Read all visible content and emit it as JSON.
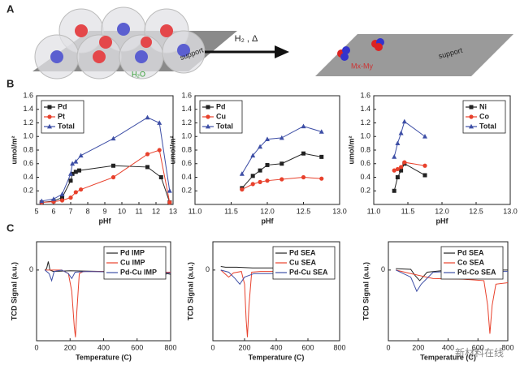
{
  "panel_labels": [
    "A",
    "B",
    "C"
  ],
  "panel_a": {
    "left_support": "support",
    "water": "H₂O",
    "arrow_label": "H₂ , Δ",
    "alloy": "Mx-My",
    "right_support": "support"
  },
  "watermark": "新材料在线",
  "chart_data": [
    {
      "type": "line",
      "xlabel": "pHf",
      "ylabel": "umol/m²",
      "xlim": [
        5,
        13
      ],
      "ylim": [
        0,
        1.6
      ],
      "xticks": [
        5,
        6,
        7,
        8,
        9,
        10,
        11,
        12,
        13
      ],
      "yticks": [
        0.2,
        0.4,
        0.6,
        0.8,
        {
          "value": 1.0,
          "label": "1.0"
        },
        1.2,
        1.4,
        1.6
      ],
      "legend": "upper left",
      "series": [
        {
          "name": "Pd",
          "color": "#222222",
          "marker": "square",
          "x": [
            5.3,
            6,
            6.5,
            7,
            7.1,
            7.3,
            7.5,
            9.5,
            11.5,
            12.3,
            12.8
          ],
          "values": [
            0.03,
            0.05,
            0.1,
            0.35,
            0.45,
            0.48,
            0.5,
            0.57,
            0.55,
            0.4,
            0.03
          ]
        },
        {
          "name": "Pt",
          "color": "#e8412c",
          "marker": "circle",
          "x": [
            5.3,
            6,
            6.5,
            7,
            7.3,
            7.6,
            9.5,
            11.5,
            12.2,
            12.8
          ],
          "values": [
            0.03,
            0.04,
            0.06,
            0.1,
            0.18,
            0.22,
            0.4,
            0.74,
            0.8,
            0.03
          ]
        },
        {
          "name": "Total",
          "color": "#3e4fa6",
          "marker": "triangle",
          "x": [
            5.3,
            6,
            6.5,
            7,
            7.1,
            7.3,
            7.6,
            9.5,
            11.5,
            12.2,
            12.8
          ],
          "values": [
            0.05,
            0.08,
            0.15,
            0.45,
            0.6,
            0.63,
            0.72,
            0.97,
            1.28,
            1.2,
            0.2
          ]
        }
      ]
    },
    {
      "type": "line",
      "xlabel": "pHf",
      "ylabel": "umol/m²",
      "xlim": [
        11,
        13
      ],
      "ylim": [
        0,
        1.6
      ],
      "xticks": [
        {
          "value": 11,
          "label": "11.0"
        },
        11.5,
        {
          "value": 12,
          "label": "12.0"
        },
        12.5,
        {
          "value": 13,
          "label": "13.0"
        }
      ],
      "yticks": [
        0.2,
        0.4,
        0.6,
        0.8,
        {
          "value": 1.0,
          "label": "1.0"
        },
        1.2,
        1.4,
        1.6
      ],
      "legend": "upper left",
      "series": [
        {
          "name": "Pd",
          "color": "#222222",
          "marker": "square",
          "x": [
            11.65,
            11.8,
            11.9,
            12.0,
            12.2,
            12.5,
            12.75
          ],
          "values": [
            0.24,
            0.42,
            0.5,
            0.58,
            0.6,
            0.75,
            0.7
          ]
        },
        {
          "name": "Cu",
          "color": "#e8412c",
          "marker": "circle",
          "x": [
            11.65,
            11.8,
            11.9,
            12.0,
            12.2,
            12.5,
            12.75
          ],
          "values": [
            0.22,
            0.3,
            0.33,
            0.35,
            0.37,
            0.4,
            0.38
          ]
        },
        {
          "name": "Total",
          "color": "#3e4fa6",
          "marker": "triangle",
          "x": [
            11.65,
            11.8,
            11.9,
            12.0,
            12.2,
            12.5,
            12.75
          ],
          "values": [
            0.45,
            0.72,
            0.85,
            0.96,
            0.98,
            1.15,
            1.07
          ]
        }
      ]
    },
    {
      "type": "line",
      "xlabel": "pHf",
      "ylabel": "umol/m²",
      "xlim": [
        11,
        13
      ],
      "ylim": [
        0,
        1.6
      ],
      "xticks": [
        {
          "value": 11,
          "label": "11.0"
        },
        11.5,
        {
          "value": 12,
          "label": "12.0"
        },
        12.5,
        {
          "value": 13,
          "label": "13.0"
        }
      ],
      "yticks": [
        0.2,
        0.4,
        0.6,
        0.8,
        {
          "value": 1.0,
          "label": "1.0"
        },
        1.2,
        1.4,
        1.6
      ],
      "legend": "upper right",
      "series": [
        {
          "name": "Ni",
          "color": "#222222",
          "marker": "square",
          "x": [
            11.3,
            11.35,
            11.4,
            11.45,
            11.75
          ],
          "values": [
            0.2,
            0.4,
            0.5,
            0.6,
            0.43
          ]
        },
        {
          "name": "Co",
          "color": "#e8412c",
          "marker": "circle",
          "x": [
            11.3,
            11.35,
            11.4,
            11.45,
            11.75
          ],
          "values": [
            0.5,
            0.52,
            0.55,
            0.62,
            0.57
          ]
        },
        {
          "name": "Total",
          "color": "#3e4fa6",
          "marker": "triangle",
          "x": [
            11.3,
            11.35,
            11.4,
            11.45,
            11.75
          ],
          "values": [
            0.7,
            0.9,
            1.05,
            1.22,
            1.0
          ]
        }
      ]
    },
    {
      "type": "line",
      "xlabel": "Temperature (C)",
      "ylabel": "TCD Signal (a.u.)",
      "xlim": [
        0,
        800
      ],
      "ylim": [
        -1,
        0.4
      ],
      "xticks": [
        0,
        200,
        400,
        600,
        800
      ],
      "yticks": [
        0
      ],
      "legend": "upper right",
      "series": [
        {
          "name": "Pd IMP",
          "color": "#222222",
          "x": [
            50,
            60,
            70,
            80,
            100,
            200,
            400,
            600,
            700,
            750,
            780,
            800
          ],
          "values": [
            0,
            0.02,
            0.12,
            0,
            -0.02,
            -0.01,
            -0.02,
            -0.03,
            -0.04,
            -0.08,
            -0.05,
            -0.06
          ]
        },
        {
          "name": "Cu IMP",
          "color": "#e8412c",
          "x": [
            50,
            150,
            190,
            210,
            225,
            232,
            240,
            255,
            280,
            400,
            600,
            800
          ],
          "values": [
            0,
            0,
            -0.05,
            -0.3,
            -0.8,
            -0.95,
            -0.6,
            -0.05,
            -0.02,
            -0.02,
            -0.03,
            -0.03
          ]
        },
        {
          "name": "Pd-Cu IMP",
          "color": "#3e4fa6",
          "x": [
            50,
            75,
            90,
            105,
            150,
            190,
            210,
            230,
            300,
            500,
            800
          ],
          "values": [
            0,
            -0.05,
            -0.15,
            -0.02,
            0,
            -0.05,
            -0.12,
            -0.03,
            -0.02,
            -0.03,
            -0.04
          ]
        }
      ]
    },
    {
      "type": "line",
      "xlabel": "Temperature (C)",
      "ylabel": "TCD Signal (a.u.)",
      "xlim": [
        0,
        800
      ],
      "ylim": [
        -1,
        0.4
      ],
      "xticks": [
        0,
        200,
        400,
        600,
        800
      ],
      "yticks": [
        0
      ],
      "legend": "upper right",
      "series": [
        {
          "name": "Pd SEA",
          "color": "#222222",
          "x": [
            50,
            80,
            150,
            250,
            400,
            550,
            700
          ],
          "values": [
            0.05,
            0.04,
            0.04,
            0.03,
            0.03,
            0.02,
            0.02
          ]
        },
        {
          "name": "Cu SEA",
          "color": "#e8412c",
          "x": [
            50,
            80,
            100,
            130,
            180,
            200,
            210,
            218,
            228,
            245,
            300,
            500,
            700
          ],
          "values": [
            0,
            -0.06,
            -0.1,
            -0.04,
            -0.02,
            -0.2,
            -0.7,
            -0.95,
            -0.5,
            -0.03,
            -0.02,
            -0.02,
            -0.02
          ]
        },
        {
          "name": "Pd-Cu SEA",
          "color": "#3e4fa6",
          "x": [
            50,
            100,
            140,
            170,
            200,
            260,
            400,
            550,
            700
          ],
          "values": [
            0,
            -0.03,
            -0.12,
            -0.2,
            -0.1,
            -0.05,
            -0.05,
            -0.05,
            -0.05
          ]
        }
      ]
    },
    {
      "type": "line",
      "xlabel": "Temperature (C)",
      "ylabel": "TCD Signal (a.u.)",
      "xlim": [
        0,
        800
      ],
      "ylim": [
        -1,
        0.4
      ],
      "xticks": [
        0,
        200,
        400,
        600,
        800
      ],
      "yticks": [
        0
      ],
      "legend": "upper right",
      "series": [
        {
          "name": "Pd SEA",
          "color": "#222222",
          "x": [
            50,
            150,
            180,
            210,
            260,
            400,
            600,
            800
          ],
          "values": [
            0.02,
            0.01,
            -0.08,
            -0.15,
            -0.03,
            0,
            0,
            0
          ]
        },
        {
          "name": "Co SEA",
          "color": "#e8412c",
          "x": [
            50,
            150,
            300,
            500,
            640,
            665,
            680,
            695,
            720,
            800
          ],
          "values": [
            0,
            -0.05,
            -0.12,
            -0.13,
            -0.15,
            -0.5,
            -0.9,
            -0.5,
            -0.2,
            -0.18
          ]
        },
        {
          "name": "Pd-Co SEA",
          "color": "#3e4fa6",
          "x": [
            50,
            150,
            190,
            220,
            300,
            420,
            450,
            480,
            600,
            800
          ],
          "values": [
            0,
            -0.1,
            -0.3,
            -0.2,
            -0.03,
            -0.02,
            -0.08,
            -0.03,
            -0.02,
            -0.02
          ]
        }
      ]
    }
  ]
}
